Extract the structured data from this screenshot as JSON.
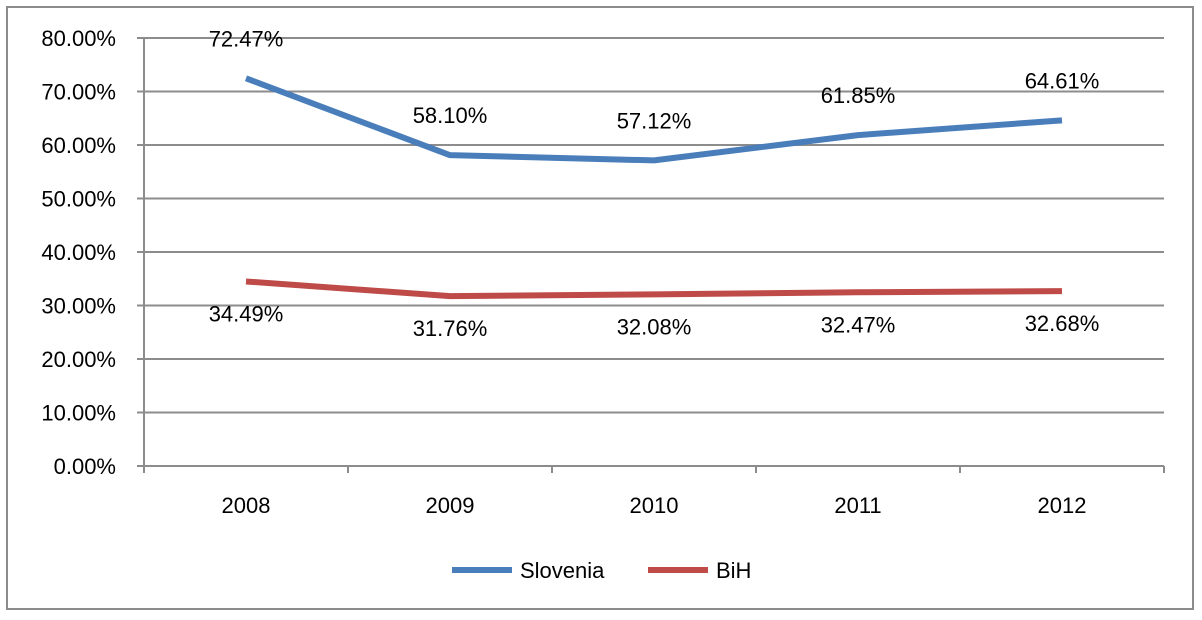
{
  "chart_data": {
    "type": "line",
    "title": "",
    "xlabel": "",
    "ylabel": "",
    "categories": [
      "2008",
      "2009",
      "2010",
      "2011",
      "2012"
    ],
    "ylim": [
      0,
      80
    ],
    "y_ticks": [
      "0.00%",
      "10.00%",
      "20.00%",
      "30.00%",
      "40.00%",
      "50.00%",
      "60.00%",
      "70.00%",
      "80.00%"
    ],
    "grid": true,
    "legend_position": "bottom",
    "series": [
      {
        "name": "Slovenia",
        "color": "#4a7ebb",
        "values": [
          72.47,
          58.1,
          57.12,
          61.85,
          64.61
        ],
        "labels": [
          "72.47%",
          "58.10%",
          "57.12%",
          "61.85%",
          "64.61%"
        ]
      },
      {
        "name": "BiH",
        "color": "#be4b48",
        "values": [
          34.49,
          31.76,
          32.08,
          32.47,
          32.68
        ],
        "labels": [
          "34.49%",
          "31.76%",
          "32.08%",
          "32.47%",
          "32.68%"
        ]
      }
    ]
  }
}
